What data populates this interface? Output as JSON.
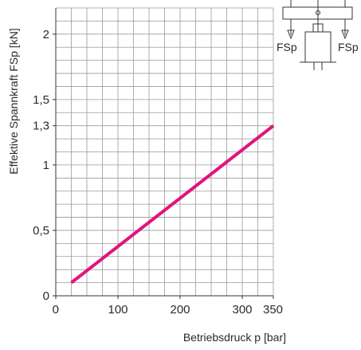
{
  "chart_data": {
    "type": "line",
    "xlabel": "Betriebsdruck p [bar]",
    "ylabel": "Effektive Spannkraft FSp [kN]",
    "xlim": [
      0,
      350
    ],
    "ylim": [
      0,
      2.2
    ],
    "x_ticks": [
      0,
      100,
      200,
      300,
      350
    ],
    "y_ticks": [
      0,
      0.5,
      1,
      1.3,
      1.5,
      2
    ],
    "x_tick_labels": [
      "0",
      "100",
      "200",
      "300",
      "350"
    ],
    "y_tick_labels": [
      "0",
      "0,5",
      "1",
      "1,3",
      "1,5",
      "2"
    ],
    "grid": true,
    "series": [
      {
        "x": [
          25,
          350
        ],
        "y": [
          0.1,
          1.3
        ],
        "color": "#e2137e"
      }
    ]
  },
  "diagram": {
    "force_label_left": "FSp",
    "force_label_right": "FSp"
  }
}
